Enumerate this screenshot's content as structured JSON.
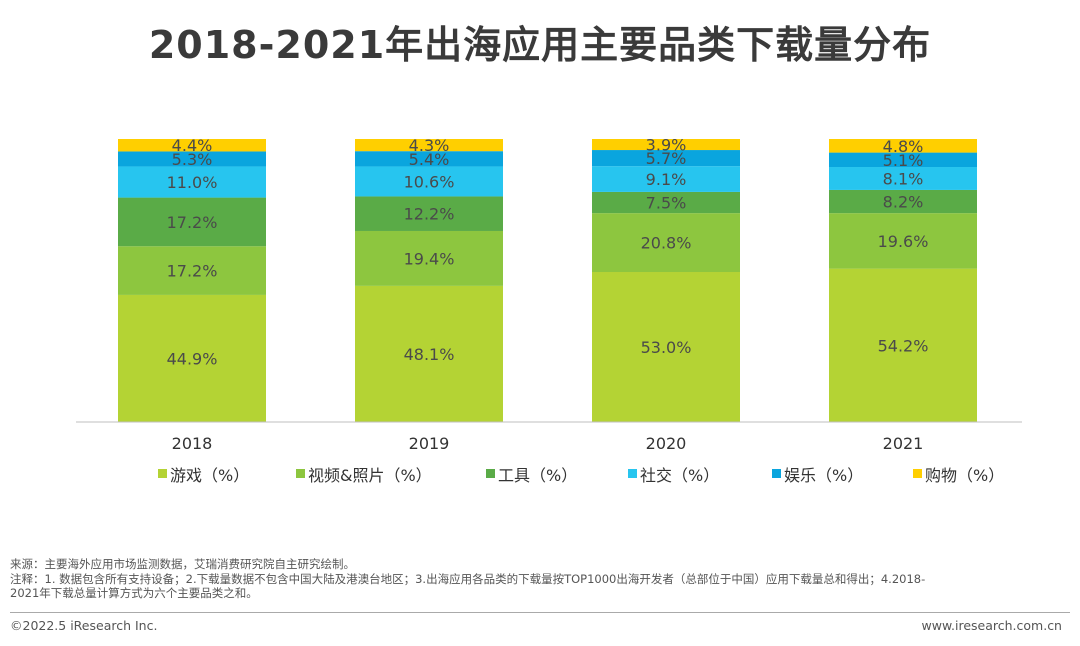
{
  "title": "2018-2021年出海应用主要品类下载量分布",
  "chart_data": {
    "type": "bar",
    "stacked": true,
    "percent_stacked": true,
    "categories": [
      "2018",
      "2019",
      "2020",
      "2021"
    ],
    "series": [
      {
        "name": "游戏（%）",
        "color": "#b4d334",
        "values": [
          44.9,
          48.1,
          53.0,
          54.2
        ],
        "labels": [
          "44.9%",
          "48.1%",
          "53.0%",
          "54.2%"
        ]
      },
      {
        "name": "视频&照片（%）",
        "color": "#8dc63f",
        "values": [
          17.2,
          19.4,
          20.8,
          19.6
        ],
        "labels": [
          "17.2%",
          "19.4%",
          "20.8%",
          "19.6%"
        ]
      },
      {
        "name": "工具（%）",
        "color": "#5aab47",
        "values": [
          17.2,
          12.2,
          7.5,
          8.2
        ],
        "labels": [
          "17.2%",
          "12.2%",
          "7.5%",
          "8.2%"
        ]
      },
      {
        "name": "社交（%）",
        "color": "#27c5ef",
        "values": [
          11.0,
          10.6,
          9.1,
          8.1
        ],
        "labels": [
          "11.0%",
          "10.6%",
          "9.1%",
          "8.1%"
        ]
      },
      {
        "name": "娱乐（%）",
        "color": "#0aa5de",
        "values": [
          5.3,
          5.4,
          5.7,
          5.1
        ],
        "labels": [
          "5.3%",
          "5.4%",
          "5.7%",
          "5.1%"
        ]
      },
      {
        "name": "购物（%）",
        "color": "#ffcf00",
        "values": [
          4.4,
          4.3,
          3.9,
          4.8
        ],
        "labels": [
          "4.4%",
          "4.3%",
          "3.9%",
          "4.8%"
        ]
      }
    ],
    "ylim": [
      0,
      100
    ],
    "grid": false,
    "legend_position": "bottom"
  },
  "notes": {
    "source": "来源：主要海外应用市场监测数据，艾瑞消费研究院自主研究绘制。",
    "note_line1": "注释：1. 数据包含所有支持设备；2.下载量数据不包含中国大陆及港澳台地区；3.出海应用各品类的下载量按TOP1000出海开发者（总部位于中国）应用下载量总和得出；4.2018-",
    "note_line2": "2021年下载总量计算方式为六个主要品类之和。"
  },
  "footer": {
    "copyright": "©2022.5 iResearch Inc.",
    "website": "www.iresearch.com.cn"
  }
}
